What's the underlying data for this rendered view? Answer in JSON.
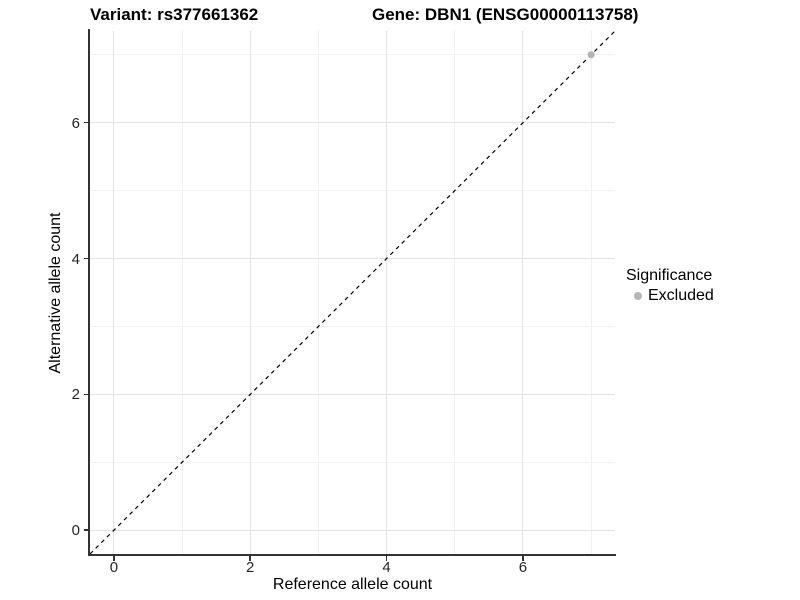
{
  "titles": {
    "variant": "Variant: rs377661362",
    "gene": "Gene: DBN1 (ENSG00000113758)"
  },
  "chart_data": {
    "type": "scatter",
    "title_left": "Variant: rs377661362",
    "title_right": "Gene: DBN1 (ENSG00000113758)",
    "xlabel": "Reference allele count",
    "ylabel": "Alternative allele count",
    "xlim": [
      -0.35,
      7.35
    ],
    "ylim": [
      -0.35,
      7.35
    ],
    "x_major_ticks": [
      0,
      2,
      4,
      6
    ],
    "x_minor_ticks": [
      1,
      3,
      5,
      7
    ],
    "y_major_ticks": [
      0,
      2,
      4,
      6
    ],
    "y_minor_ticks": [
      1,
      3,
      5,
      7
    ],
    "grid": true,
    "identity_line": {
      "style": "dashed",
      "equation": "y = x",
      "color": "#000000"
    },
    "series": [
      {
        "name": "Excluded",
        "color": "#b4b4b4",
        "points": [
          {
            "x": 7,
            "y": 7
          }
        ]
      }
    ],
    "legend": {
      "title": "Significance",
      "position": "right",
      "items": [
        {
          "label": "Excluded",
          "color": "#b4b4b4"
        }
      ]
    }
  },
  "colors": {
    "background": "#ffffff",
    "axis": "#333333",
    "grid_major": "#e3e3e3",
    "grid_minor": "#f0f0f0",
    "point": "#b4b4b4",
    "identity_line": "#000000",
    "text": "#000000"
  }
}
